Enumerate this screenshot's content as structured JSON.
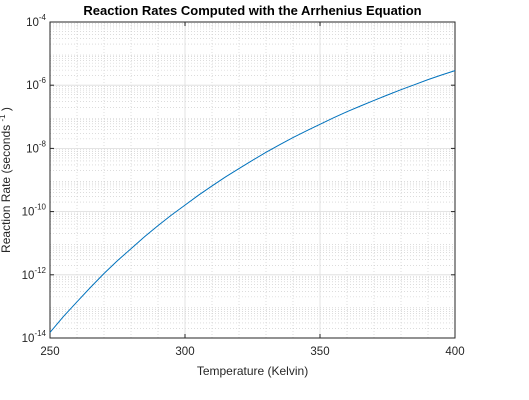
{
  "chart_data": {
    "type": "line",
    "title": "Reaction Rates Computed with the Arrhenius Equation",
    "xlabel": "Temperature (Kelvin)",
    "ylabel_prefix": "Reaction Rate (seconds",
    "ylabel_exp": "-1",
    "ylabel_suffix": ")",
    "xlim": [
      250,
      400
    ],
    "ylim": [
      1e-14,
      0.0001
    ],
    "yscale": "log",
    "grid": true,
    "minor_grid": true,
    "x_ticks": [
      250,
      300,
      350,
      400
    ],
    "y_tick_base": "10",
    "y_tick_exponents": [
      "-14",
      "-12",
      "-10",
      "-8",
      "-6",
      "-4"
    ],
    "series": [
      {
        "color": "#0072bd",
        "x": [
          250,
          255,
          260,
          265,
          270,
          275,
          280,
          285,
          290,
          295,
          300,
          305,
          310,
          315,
          320,
          325,
          330,
          335,
          340,
          345,
          350,
          355,
          360,
          365,
          370,
          375,
          380,
          385,
          390,
          395,
          400
        ],
        "y": [
          1.5e-14,
          4.8e-14,
          1.4e-13,
          4e-13,
          1.1e-12,
          2.8e-12,
          6.7e-12,
          1.6e-11,
          3.6e-11,
          7.8e-11,
          1.6e-10,
          3.3e-10,
          6.5e-10,
          1.25e-09,
          2.3e-09,
          4.2e-09,
          7.5e-09,
          1.3e-08,
          2.2e-08,
          3.6e-08,
          5.8e-08,
          9.3e-08,
          1.45e-07,
          2.2e-07,
          3.3e-07,
          4.9e-07,
          7.2e-07,
          1.04e-06,
          1.5e-06,
          2.1e-06,
          2.9e-06
        ]
      }
    ]
  }
}
